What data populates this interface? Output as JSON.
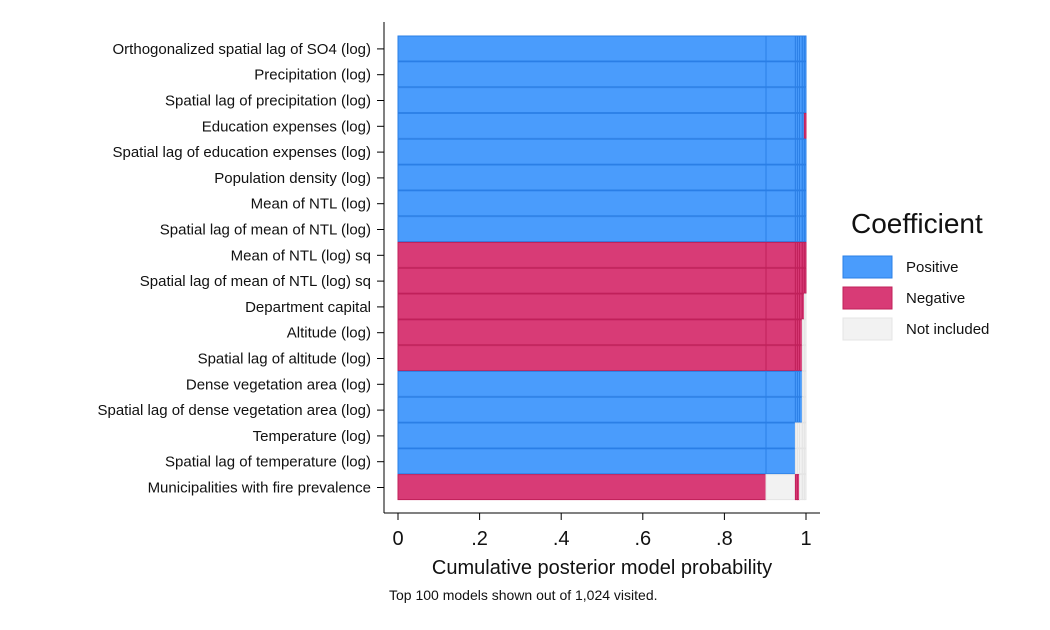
{
  "chart_data": {
    "type": "bar",
    "subtype": "model-inclusion-map",
    "xlabel": "Cumulative posterior model probability",
    "xlim": [
      0,
      1
    ],
    "xticks": [
      {
        "value": 0,
        "label": "0"
      },
      {
        "value": 0.2,
        "label": ".2"
      },
      {
        "value": 0.4,
        "label": ".4"
      },
      {
        "value": 0.6,
        "label": ".6"
      },
      {
        "value": 0.8,
        "label": ".8"
      },
      {
        "value": 1,
        "label": "1"
      }
    ],
    "note": "Top 100 models shown out of 1,024 visited.",
    "legend": {
      "title": "Coefficient",
      "placement": "right",
      "entries": [
        {
          "key": "pos",
          "label": "Positive",
          "color": "#4a9cfc",
          "edge": "#2b7fe6"
        },
        {
          "key": "neg",
          "label": "Negative",
          "color": "#d83b76",
          "edge": "#c0205a"
        },
        {
          "key": "none",
          "label": "Not included",
          "color": "#f2f2f2",
          "edge": "#e4e4e4"
        }
      ]
    },
    "model_boundaries": [
      0,
      0.902,
      0.974,
      0.979,
      0.984,
      0.991,
      0.996,
      1.0
    ],
    "variables": [
      {
        "label": "Orthogonalized spatial lag of SO4 (log)",
        "models": [
          "pos",
          "pos",
          "pos",
          "pos",
          "pos",
          "pos",
          "pos"
        ]
      },
      {
        "label": "Precipitation (log)",
        "models": [
          "pos",
          "pos",
          "pos",
          "pos",
          "pos",
          "pos",
          "pos"
        ]
      },
      {
        "label": "Spatial lag of precipitation (log)",
        "models": [
          "pos",
          "pos",
          "pos",
          "pos",
          "pos",
          "pos",
          "pos"
        ]
      },
      {
        "label": "Education expenses (log)",
        "models": [
          "pos",
          "pos",
          "pos",
          "pos",
          "pos",
          "pos",
          "neg"
        ]
      },
      {
        "label": "Spatial lag of education expenses (log)",
        "models": [
          "pos",
          "pos",
          "pos",
          "pos",
          "pos",
          "pos",
          "pos"
        ]
      },
      {
        "label": "Population density (log)",
        "models": [
          "pos",
          "pos",
          "pos",
          "pos",
          "pos",
          "pos",
          "pos"
        ]
      },
      {
        "label": "Mean of NTL (log)",
        "models": [
          "pos",
          "pos",
          "pos",
          "pos",
          "pos",
          "pos",
          "pos"
        ]
      },
      {
        "label": "Spatial lag of mean of NTL (log)",
        "models": [
          "pos",
          "pos",
          "pos",
          "pos",
          "pos",
          "pos",
          "pos"
        ]
      },
      {
        "label": "Mean of NTL (log) sq",
        "models": [
          "neg",
          "neg",
          "neg",
          "neg",
          "neg",
          "neg",
          "neg"
        ]
      },
      {
        "label": "Spatial lag of mean of NTL (log) sq",
        "models": [
          "neg",
          "neg",
          "neg",
          "neg",
          "neg",
          "neg",
          "neg"
        ]
      },
      {
        "label": "Department capital ",
        "models": [
          "neg",
          "neg",
          "neg",
          "neg",
          "neg",
          "neg",
          "none"
        ]
      },
      {
        "label": "Altitude (log)",
        "models": [
          "neg",
          "neg",
          "neg",
          "neg",
          "neg",
          "none",
          "none"
        ]
      },
      {
        "label": "Spatial lag of altitude (log)",
        "models": [
          "neg",
          "neg",
          "neg",
          "neg",
          "neg",
          "none",
          "none"
        ]
      },
      {
        "label": "Dense vegetation area (log)",
        "models": [
          "pos",
          "pos",
          "pos",
          "pos",
          "pos",
          "none",
          "none"
        ]
      },
      {
        "label": "Spatial lag of dense vegetation area (log)",
        "models": [
          "pos",
          "pos",
          "pos",
          "pos",
          "pos",
          "none",
          "none"
        ]
      },
      {
        "label": "Temperature (log)",
        "models": [
          "pos",
          "pos",
          "none",
          "none",
          "none",
          "none",
          "none"
        ]
      },
      {
        "label": "Spatial lag of temperature (log)",
        "models": [
          "pos",
          "pos",
          "none",
          "none",
          "none",
          "none",
          "none"
        ]
      },
      {
        "label": "Municipalities with fire prevalence",
        "models": [
          "neg",
          "none",
          "neg",
          "neg",
          "none",
          "none",
          "none"
        ]
      }
    ]
  }
}
